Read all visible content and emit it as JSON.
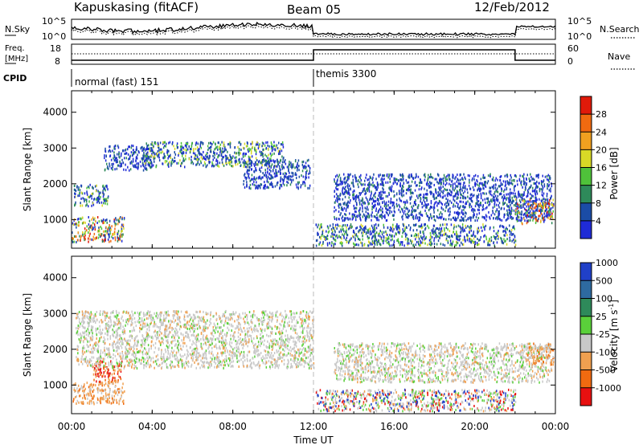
{
  "header": {
    "station": "Kapuskasing (fitACF)",
    "beam": "Beam 05",
    "date": "12/Feb/2012"
  },
  "nsky_panel": {
    "left_label": "N.Sky",
    "right_label": "N.Search",
    "left_ticks": [
      "10^5",
      "10^0"
    ],
    "right_ticks": [
      "10^5",
      "10^0"
    ],
    "right_legend_style": "dotted"
  },
  "freq_panel": {
    "left_label_1": "Freq.",
    "left_label_2": "[MHz]",
    "right_label": "Nave",
    "left_ticks": [
      "18",
      "8"
    ],
    "right_ticks": [
      "60",
      "0"
    ],
    "right_legend_style": "dotted"
  },
  "cpid_panel": {
    "label": "CPID",
    "modes": [
      {
        "name": "normal (fast) 151",
        "start_hour": 0
      },
      {
        "name": "themis 3300",
        "start_hour": 12
      }
    ]
  },
  "time_axis": {
    "label": "Time UT",
    "ticks": [
      "00:00",
      "04:00",
      "08:00",
      "12:00",
      "16:00",
      "20:00",
      "00:00"
    ],
    "range_hours": [
      0,
      24
    ]
  },
  "power_panel": {
    "ylabel": "Slant Range [km]",
    "yticks": [
      "1000",
      "2000",
      "3000",
      "4000"
    ],
    "yrange_km": [
      200,
      4600
    ],
    "colorbar_label": "Power [dB]",
    "colorbar_ticks": [
      "4",
      "8",
      "12",
      "16",
      "20",
      "24",
      "28"
    ],
    "colorbar_colors": [
      "#1f2bd6",
      "#1b4ca6",
      "#2e8a5a",
      "#4fc23a",
      "#d9d926",
      "#f0a020",
      "#f06a10",
      "#e01a0a"
    ]
  },
  "velocity_panel": {
    "ylabel": "Slant Range [km]",
    "yticks": [
      "1000",
      "2000",
      "3000",
      "4000"
    ],
    "yrange_km": [
      200,
      4600
    ],
    "colorbar_label": "Velocity [m s",
    "colorbar_label_sup": "-1",
    "colorbar_label_end": "]",
    "colorbar_ticks": [
      "1000",
      "500",
      "100",
      "25",
      "-25",
      "-100",
      "-500",
      "-1000"
    ],
    "colorbar_colors": [
      "#2040c8",
      "#2e6aa0",
      "#2e8a5a",
      "#5ad03a",
      "#c8c8c8",
      "#f0a050",
      "#f06a10",
      "#e81010"
    ]
  },
  "chart_data": {
    "type": "heatmap",
    "x_unit": "hours UT",
    "y_unit": "km",
    "power_regions": [
      {
        "t0": 0.0,
        "t1": 2.6,
        "r0": 400,
        "r1": 1100,
        "level": "mixed_high"
      },
      {
        "t0": 0.1,
        "t1": 1.8,
        "r0": 1400,
        "r1": 2000,
        "level": "mixed"
      },
      {
        "t0": 1.6,
        "t1": 4.0,
        "r0": 2400,
        "r1": 3100,
        "level": "mixed_low"
      },
      {
        "t0": 3.5,
        "t1": 10.5,
        "r0": 2500,
        "r1": 3200,
        "level": "mixed"
      },
      {
        "t0": 8.5,
        "t1": 11.8,
        "r0": 1900,
        "r1": 2700,
        "level": "mixed_low"
      },
      {
        "t0": 12.1,
        "t1": 22.0,
        "r0": 300,
        "r1": 900,
        "level": "mixed"
      },
      {
        "t0": 13.0,
        "t1": 23.8,
        "r0": 1000,
        "r1": 2300,
        "level": "mixed_low"
      },
      {
        "t0": 22.0,
        "t1": 23.9,
        "r0": 900,
        "r1": 1600,
        "level": "mixed_high"
      }
    ],
    "velocity_regions": [
      {
        "t0": 0.0,
        "t1": 2.6,
        "r0": 500,
        "r1": 1100,
        "level": "orange"
      },
      {
        "t0": 1.0,
        "t1": 2.5,
        "r0": 1100,
        "r1": 1700,
        "level": "orange_red"
      },
      {
        "t0": 0.2,
        "t1": 12.0,
        "r0": 1500,
        "r1": 3100,
        "level": "gray"
      },
      {
        "t0": 12.1,
        "t1": 22.0,
        "r0": 300,
        "r1": 900,
        "level": "gray_mix"
      },
      {
        "t0": 13.0,
        "t1": 23.8,
        "r0": 1100,
        "r1": 2200,
        "level": "gray"
      },
      {
        "t0": 22.5,
        "t1": 23.9,
        "r0": 1600,
        "r1": 2200,
        "level": "orange"
      }
    ]
  }
}
